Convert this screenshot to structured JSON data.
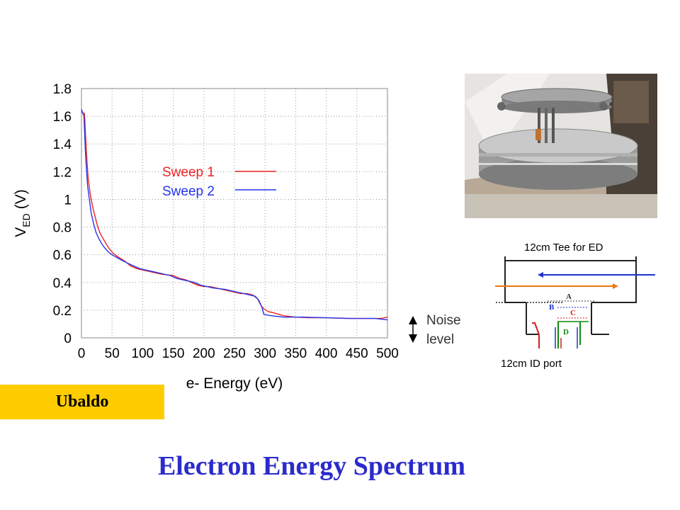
{
  "chart_data": {
    "type": "line",
    "xlabel": "e- Energy (eV)",
    "ylabel": "V",
    "ylabel_sub": "ED",
    "ylabel_unit": "(V)",
    "xlim": [
      0,
      500
    ],
    "ylim": [
      0,
      1.8
    ],
    "xticks": [
      "0",
      "50",
      "100",
      "150",
      "200",
      "250",
      "300",
      "350",
      "400",
      "450",
      "500"
    ],
    "yticks": [
      "0",
      "0.2",
      "0.4",
      "0.6",
      "0.8",
      "1",
      "1.2",
      "1.4",
      "1.6",
      "1.8"
    ],
    "grid": true,
    "legend_position": "upper-center",
    "series": [
      {
        "name": "Sweep 1",
        "color": "#ee2222",
        "points": [
          [
            0,
            1.63
          ],
          [
            5,
            1.62
          ],
          [
            8,
            1.35
          ],
          [
            11,
            1.15
          ],
          [
            14,
            1.05
          ],
          [
            18,
            0.95
          ],
          [
            22,
            0.88
          ],
          [
            26,
            0.81
          ],
          [
            30,
            0.76
          ],
          [
            35,
            0.72
          ],
          [
            40,
            0.68
          ],
          [
            46,
            0.64
          ],
          [
            52,
            0.61
          ],
          [
            58,
            0.59
          ],
          [
            65,
            0.57
          ],
          [
            72,
            0.55
          ],
          [
            80,
            0.52
          ],
          [
            90,
            0.5
          ],
          [
            100,
            0.49
          ],
          [
            110,
            0.48
          ],
          [
            120,
            0.47
          ],
          [
            130,
            0.46
          ],
          [
            140,
            0.455
          ],
          [
            150,
            0.45
          ],
          [
            160,
            0.43
          ],
          [
            170,
            0.42
          ],
          [
            180,
            0.4
          ],
          [
            190,
            0.38
          ],
          [
            200,
            0.37
          ],
          [
            210,
            0.37
          ],
          [
            220,
            0.36
          ],
          [
            230,
            0.35
          ],
          [
            240,
            0.34
          ],
          [
            250,
            0.33
          ],
          [
            260,
            0.32
          ],
          [
            270,
            0.32
          ],
          [
            280,
            0.31
          ],
          [
            288,
            0.28
          ],
          [
            294,
            0.23
          ],
          [
            298,
            0.21
          ],
          [
            305,
            0.19
          ],
          [
            315,
            0.18
          ],
          [
            330,
            0.16
          ],
          [
            350,
            0.15
          ],
          [
            370,
            0.145
          ],
          [
            400,
            0.145
          ],
          [
            430,
            0.14
          ],
          [
            460,
            0.14
          ],
          [
            490,
            0.14
          ],
          [
            500,
            0.15
          ]
        ]
      },
      {
        "name": "Sweep 2",
        "color": "#2233ee",
        "points": [
          [
            0,
            1.65
          ],
          [
            4,
            1.6
          ],
          [
            7,
            1.3
          ],
          [
            10,
            1.1
          ],
          [
            13,
            1.0
          ],
          [
            16,
            0.9
          ],
          [
            20,
            0.82
          ],
          [
            24,
            0.76
          ],
          [
            28,
            0.72
          ],
          [
            33,
            0.68
          ],
          [
            38,
            0.65
          ],
          [
            44,
            0.62
          ],
          [
            50,
            0.6
          ],
          [
            58,
            0.58
          ],
          [
            66,
            0.56
          ],
          [
            75,
            0.54
          ],
          [
            85,
            0.52
          ],
          [
            95,
            0.5
          ],
          [
            105,
            0.49
          ],
          [
            115,
            0.48
          ],
          [
            125,
            0.47
          ],
          [
            135,
            0.46
          ],
          [
            145,
            0.45
          ],
          [
            155,
            0.43
          ],
          [
            165,
            0.42
          ],
          [
            175,
            0.41
          ],
          [
            185,
            0.4
          ],
          [
            195,
            0.38
          ],
          [
            205,
            0.37
          ],
          [
            215,
            0.36
          ],
          [
            225,
            0.355
          ],
          [
            235,
            0.35
          ],
          [
            245,
            0.34
          ],
          [
            255,
            0.33
          ],
          [
            265,
            0.32
          ],
          [
            275,
            0.31
          ],
          [
            284,
            0.3
          ],
          [
            290,
            0.27
          ],
          [
            295,
            0.22
          ],
          [
            298,
            0.17
          ],
          [
            310,
            0.16
          ],
          [
            330,
            0.15
          ],
          [
            360,
            0.15
          ],
          [
            400,
            0.145
          ],
          [
            440,
            0.14
          ],
          [
            480,
            0.14
          ],
          [
            500,
            0.13
          ]
        ]
      }
    ]
  },
  "noise": {
    "label_line1": "Noise",
    "label_line2": "level"
  },
  "diagram": {
    "title": "12cm Tee  for ED",
    "port_label": "12cm ID port",
    "labels": [
      "A",
      "B",
      "C",
      "D"
    ],
    "colors": {
      "beam_blue": "#2233cc",
      "beam_orange": "#ee7711",
      "a": "#333333",
      "b": "#2233cc",
      "c": "#cc2222",
      "d": "#118811"
    }
  },
  "name_tag": "Ubaldo",
  "title": "Electron Energy Spectrum",
  "colors": {
    "title": "#2b2bcc",
    "name_tag_bg": "#ffcc00"
  }
}
